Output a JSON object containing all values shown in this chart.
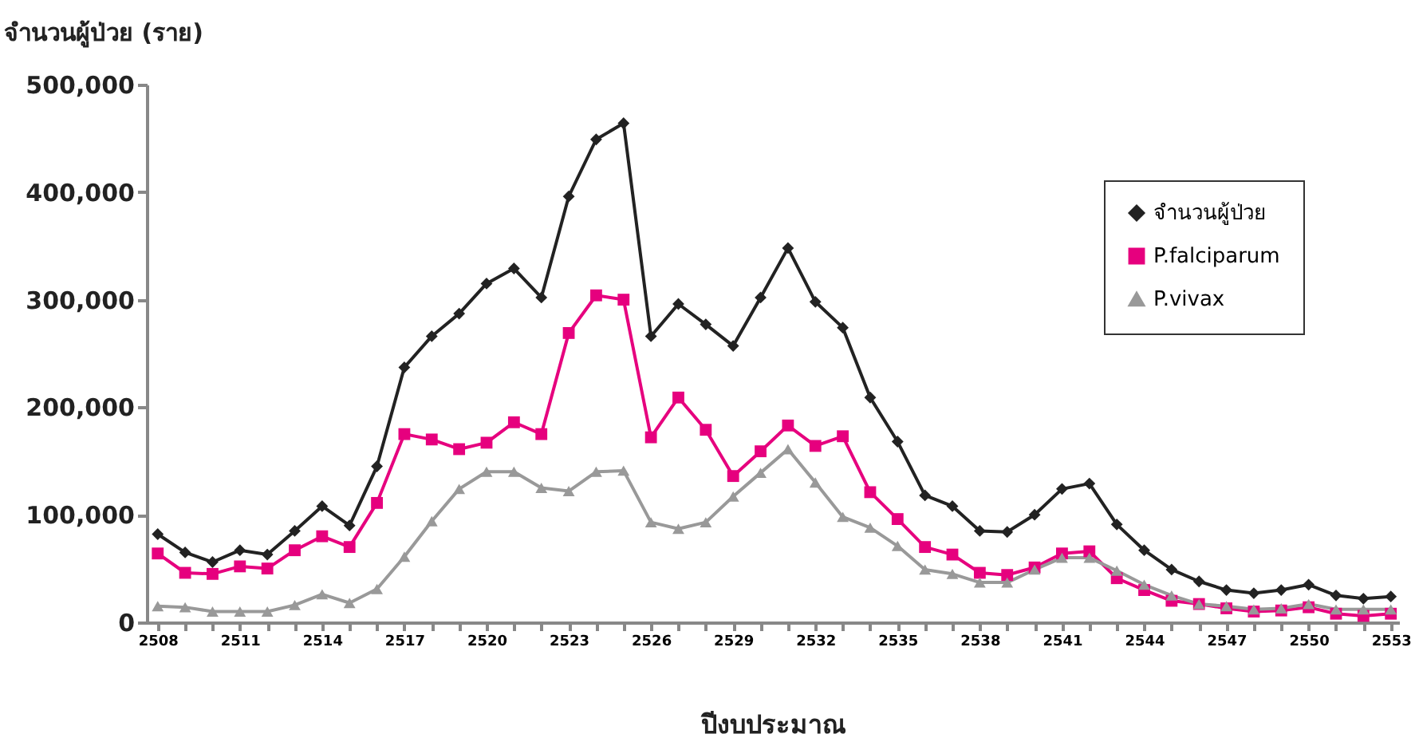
{
  "chart_data": {
    "type": "line",
    "ylabel": "จำนวนผู้ป่วย (ราย)",
    "xlabel": "ปีงบประมาณ",
    "x": [
      2508,
      2509,
      2510,
      2511,
      2512,
      2513,
      2514,
      2515,
      2516,
      2517,
      2518,
      2519,
      2520,
      2521,
      2522,
      2523,
      2524,
      2525,
      2526,
      2527,
      2528,
      2529,
      2530,
      2531,
      2532,
      2533,
      2534,
      2535,
      2536,
      2537,
      2538,
      2539,
      2540,
      2541,
      2542,
      2543,
      2544,
      2545,
      2546,
      2547,
      2548,
      2549,
      2550,
      2551,
      2552,
      2553
    ],
    "series": [
      {
        "name": "จำนวนผู้ป่วย",
        "color": "#222222",
        "marker": "diamond",
        "values": [
          82000,
          65000,
          56000,
          67000,
          63000,
          85000,
          108000,
          90000,
          145000,
          237000,
          266000,
          287000,
          315000,
          329000,
          302000,
          396000,
          449000,
          464000,
          266000,
          296000,
          277000,
          257000,
          302000,
          348000,
          298000,
          274000,
          209000,
          168000,
          118000,
          108000,
          85000,
          84000,
          100000,
          124000,
          129000,
          91000,
          67000,
          49000,
          38000,
          30000,
          27000,
          30000,
          35000,
          25000,
          22000,
          24000
        ]
      },
      {
        "name": "P.falciparum",
        "color": "#e6007e",
        "marker": "square",
        "values": [
          64000,
          46000,
          45000,
          52000,
          50000,
          67000,
          80000,
          70000,
          111000,
          175000,
          170000,
          161000,
          167000,
          186000,
          175000,
          269000,
          304000,
          300000,
          172000,
          209000,
          179000,
          136000,
          159000,
          183000,
          164000,
          173000,
          121000,
          96000,
          70000,
          63000,
          46000,
          44000,
          51000,
          64000,
          66000,
          41000,
          30000,
          20000,
          17000,
          13000,
          10000,
          11000,
          14000,
          8000,
          6000,
          8000
        ]
      },
      {
        "name": "P.vivax",
        "color": "#999999",
        "marker": "triangle",
        "values": [
          15000,
          14000,
          10000,
          10000,
          10000,
          16000,
          26000,
          18000,
          31000,
          61000,
          94000,
          124000,
          140000,
          140000,
          125000,
          122000,
          140000,
          141000,
          93000,
          87000,
          93000,
          117000,
          139000,
          161000,
          130000,
          98000,
          88000,
          71000,
          49000,
          45000,
          37000,
          37000,
          49000,
          60000,
          60000,
          48000,
          35000,
          25000,
          17000,
          15000,
          12000,
          13000,
          17000,
          12000,
          12000,
          12000
        ]
      }
    ],
    "xlim": [
      2507.6,
      2553.3
    ],
    "xticks": [
      2508,
      {
        "value": 2509,
        "label": null
      },
      {
        "value": 2510,
        "label": null
      },
      2511,
      {
        "value": 2512,
        "label": null
      },
      {
        "value": 2513,
        "label": null
      },
      2514,
      {
        "value": 2515,
        "label": null
      },
      {
        "value": 2516,
        "label": null
      },
      2517,
      {
        "value": 2518,
        "label": null
      },
      {
        "value": 2519,
        "label": null
      },
      2520,
      {
        "value": 2521,
        "label": null
      },
      {
        "value": 2522,
        "label": null
      },
      2523,
      {
        "value": 2524,
        "label": null
      },
      {
        "value": 2525,
        "label": null
      },
      2526,
      {
        "value": 2527,
        "label": null
      },
      {
        "value": 2528,
        "label": null
      },
      2529,
      {
        "value": 2530,
        "label": null
      },
      {
        "value": 2531,
        "label": null
      },
      2532,
      {
        "value": 2533,
        "label": null
      },
      {
        "value": 2534,
        "label": null
      },
      2535,
      {
        "value": 2536,
        "label": null
      },
      {
        "value": 2537,
        "label": null
      },
      2538,
      {
        "value": 2539,
        "label": null
      },
      {
        "value": 2540,
        "label": null
      },
      2541,
      {
        "value": 2542,
        "label": null
      },
      {
        "value": 2543,
        "label": null
      },
      2544,
      {
        "value": 2545,
        "label": null
      },
      {
        "value": 2546,
        "label": null
      },
      2547,
      {
        "value": 2548,
        "label": null
      },
      {
        "value": 2549,
        "label": null
      },
      2550,
      {
        "value": 2551,
        "label": null
      },
      {
        "value": 2552,
        "label": null
      },
      2553
    ],
    "ylim": [
      0,
      500000
    ],
    "yticks": [
      0,
      {
        "value": 100000,
        "label": "100,000"
      },
      {
        "value": 200000,
        "label": "200,000"
      },
      {
        "value": 300000,
        "label": "300,000"
      },
      {
        "value": 400000,
        "label": "400,000"
      },
      {
        "value": 500000,
        "label": "500,000"
      }
    ],
    "grid": false,
    "legend": "top right",
    "line_style": "solid"
  }
}
